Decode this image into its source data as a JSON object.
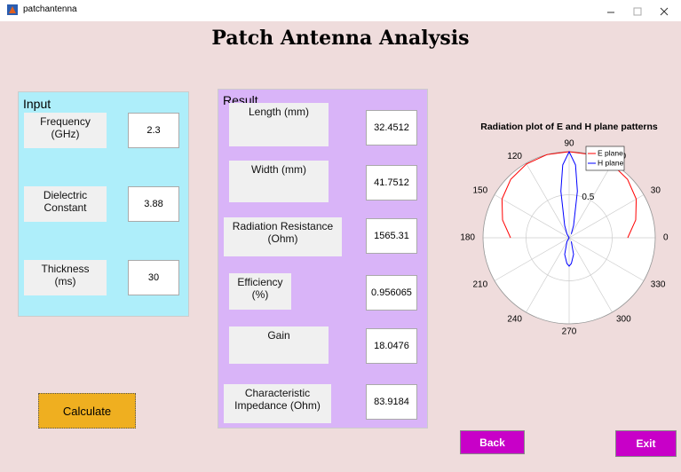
{
  "window": {
    "title": "patchantenna"
  },
  "header": {
    "title": "Patch Antenna Analysis"
  },
  "input": {
    "title": "Input",
    "fields": [
      {
        "label": "Frequency\n(GHz)",
        "value": 2.3
      },
      {
        "label": "Dielectric\nConstant",
        "value": 3.88
      },
      {
        "label": "Thickness\n(ms)",
        "value": 30
      }
    ]
  },
  "calculate_button": "Calculate",
  "result": {
    "title": "Result",
    "fields": [
      {
        "label": "Length (mm)",
        "value": 32.4512
      },
      {
        "label": "Width (mm)",
        "value": 41.7512
      },
      {
        "label": "Radiation Resistance\n(Ohm)",
        "value": 1565.31
      },
      {
        "label": "Efficiency\n(%)",
        "value": 0.956065
      },
      {
        "label": "Gain",
        "value": 18.0476
      },
      {
        "label": "Characteristic\nImpedance (Ohm)",
        "value": 83.9184
      }
    ]
  },
  "buttons": {
    "back": "Back",
    "exit": "Exit"
  },
  "chart_data": {
    "type": "polar",
    "title": "Radiation plot of E and H plane patterns",
    "rlim": [
      0,
      1
    ],
    "rticks": [
      0.5,
      1
    ],
    "angle_ticks": [
      0,
      30,
      60,
      90,
      120,
      150,
      180,
      210,
      240,
      270,
      300,
      330
    ],
    "legend": "upper right",
    "series": [
      {
        "name": "E plane",
        "color": "#ff0000",
        "theta": [
          0,
          15,
          30,
          45,
          60,
          75,
          90,
          105,
          120,
          135,
          150,
          165,
          180
        ],
        "r": [
          0.68,
          0.8,
          0.9,
          0.96,
          0.99,
          1,
          1,
          1,
          0.99,
          0.96,
          0.9,
          0.8,
          0.68
        ]
      },
      {
        "name": "H plane",
        "color": "#0000ff",
        "theta": [
          60,
          70,
          80,
          85,
          90,
          95,
          100,
          110,
          120,
          180,
          240,
          255,
          265,
          270,
          275,
          285,
          300
        ],
        "r": [
          0.05,
          0.15,
          0.55,
          0.85,
          1,
          0.85,
          0.55,
          0.15,
          0.05,
          0,
          0.05,
          0.2,
          0.3,
          0.33,
          0.3,
          0.2,
          0.05
        ]
      }
    ]
  }
}
